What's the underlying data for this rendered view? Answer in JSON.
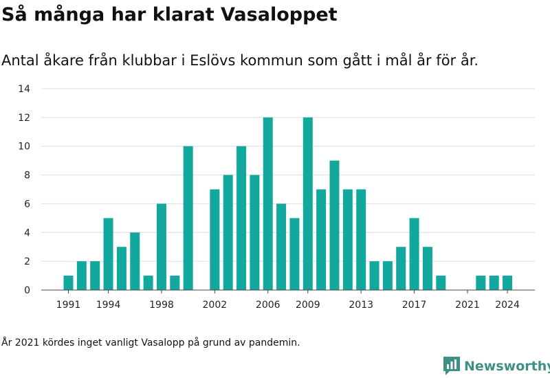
{
  "chart_data": {
    "type": "bar",
    "title": "Så många har klarat Vasaloppet",
    "subtitle": "Antal åkare från klubbar i Eslövs kommun som gått i mål år för år.",
    "xlabel": "",
    "ylabel": "",
    "x": [
      1991,
      1992,
      1993,
      1994,
      1995,
      1996,
      1997,
      1998,
      1999,
      2000,
      2001,
      2002,
      2003,
      2004,
      2005,
      2006,
      2007,
      2008,
      2009,
      2010,
      2011,
      2012,
      2013,
      2014,
      2015,
      2016,
      2017,
      2018,
      2019,
      2020,
      2021,
      2022,
      2023,
      2024
    ],
    "values": [
      1,
      2,
      2,
      5,
      3,
      4,
      1,
      6,
      1,
      10,
      0,
      7,
      8,
      10,
      8,
      12,
      6,
      5,
      12,
      7,
      9,
      7,
      7,
      2,
      2,
      3,
      5,
      3,
      1,
      0,
      0,
      1,
      1,
      1
    ],
    "x_ticks": [
      1991,
      1994,
      1998,
      2002,
      2006,
      2009,
      2013,
      2017,
      2021,
      2024
    ],
    "y_ticks": [
      0,
      2,
      4,
      6,
      8,
      10,
      12,
      14
    ],
    "ylim": [
      0,
      14
    ],
    "grid": "horizontal",
    "legend": "none",
    "bar_color": "#12a89d"
  },
  "footnote": "År 2021 kördes inget vanligt Vasalopp på grund av pandemin.",
  "brand": {
    "name": "Newsworthy",
    "icon": "newsworthy-logo-icon",
    "color": "#3f8f86"
  }
}
